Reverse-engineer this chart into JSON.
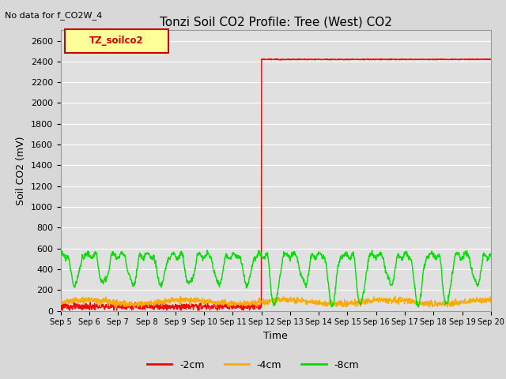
{
  "title": "Tonzi Soil CO2 Profile: Tree (West) CO2",
  "no_data_text": "No data for f_CO2W_4",
  "legend_box_text": "TZ_soilco2",
  "xlabel": "Time",
  "ylabel": "Soil CO2 (mV)",
  "ylim": [
    0,
    2700
  ],
  "yticks": [
    0,
    200,
    400,
    600,
    800,
    1000,
    1200,
    1400,
    1600,
    1800,
    2000,
    2200,
    2400,
    2600
  ],
  "bg_color": "#d8d8d8",
  "plot_bg_color": "#e0e0e0",
  "grid_color": "#ffffff",
  "series": [
    {
      "label": "-2cm",
      "color": "#ff0000"
    },
    {
      "label": "-4cm",
      "color": "#ffaa00"
    },
    {
      "label": "-8cm",
      "color": "#00dd00"
    }
  ],
  "xtick_days": [
    5,
    6,
    7,
    8,
    9,
    10,
    11,
    12,
    13,
    14,
    15,
    16,
    17,
    18,
    19,
    20
  ],
  "legend_box_bg": "#ffff99",
  "legend_box_edge": "#cc0000",
  "jump_day": 7,
  "red_before": 40,
  "red_after": 2420,
  "orange_base": 85,
  "green_base": 530,
  "green_dip": 270
}
